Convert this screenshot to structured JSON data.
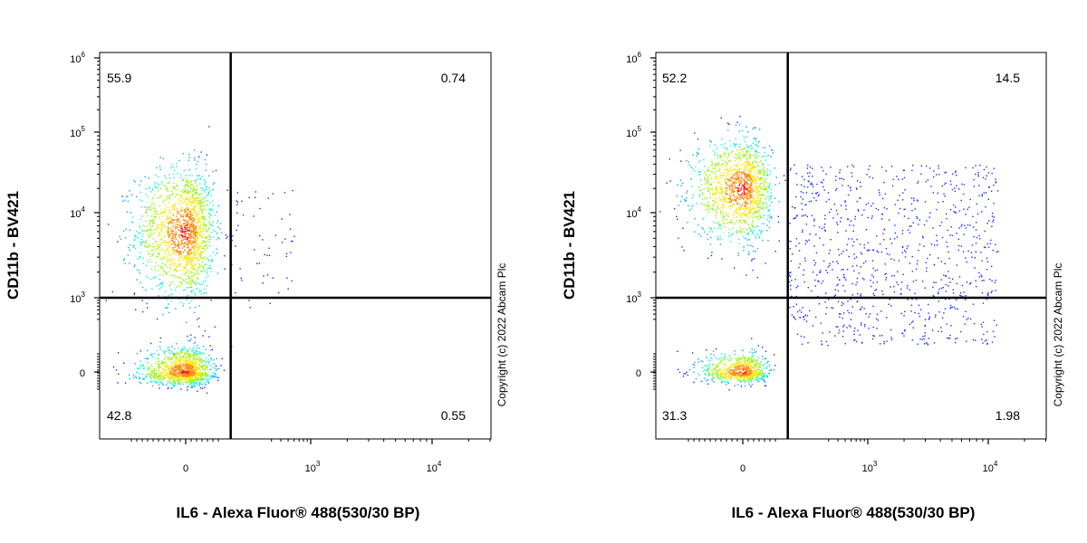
{
  "copyright": "Copyright (c) 2022 Abcam Plc",
  "colors": {
    "density": [
      "#1a2bff",
      "#15a4ff",
      "#18f0d8",
      "#9cf51a",
      "#f7e816",
      "#ff8a10",
      "#ff1a10"
    ],
    "gate_line": "#000000"
  },
  "chart_data": [
    {
      "type": "scatter",
      "subtype": "flow-cytometry-density-dot-plot",
      "xlabel": "IL6 - Alexa Fluor® 488(530/30 BP)",
      "ylabel": "CD11b - BV421",
      "x_scale": "biexponential",
      "y_scale": "biexponential",
      "x_ticks": [
        {
          "base": "0",
          "exp": ""
        },
        {
          "base": "10",
          "exp": "3"
        },
        {
          "base": "10",
          "exp": "4"
        }
      ],
      "y_ticks": [
        {
          "base": "0",
          "exp": ""
        },
        {
          "base": "10",
          "exp": "3"
        },
        {
          "base": "10",
          "exp": "4"
        },
        {
          "base": "10",
          "exp": "5"
        },
        {
          "base": "10",
          "exp": "6"
        }
      ],
      "quadrant_gate": {
        "x": 180,
        "y": 1000
      },
      "quadrants": {
        "upper_left": "55.9",
        "upper_right": "0.74",
        "lower_left": "42.8",
        "lower_right": "0.55"
      },
      "populations": [
        {
          "x_center": 0,
          "y_center": 6000,
          "n": 1700,
          "x_spread": 55,
          "y_spread": 0.38
        },
        {
          "x_center": 0,
          "y_center": 0,
          "n": 1300,
          "x_spread": 50,
          "y_spread": 0.55
        }
      ],
      "scatter_tail": {
        "n": 60,
        "x_range": [
          180,
          700
        ],
        "y_range": [
          700,
          20000
        ]
      }
    },
    {
      "type": "scatter",
      "subtype": "flow-cytometry-density-dot-plot",
      "xlabel": "IL6 - Alexa Fluor® 488(530/30 BP)",
      "ylabel": "CD11b - BV421",
      "x_scale": "biexponential",
      "y_scale": "biexponential",
      "x_ticks": [
        {
          "base": "0",
          "exp": ""
        },
        {
          "base": "10",
          "exp": "3"
        },
        {
          "base": "10",
          "exp": "4"
        }
      ],
      "y_ticks": [
        {
          "base": "0",
          "exp": ""
        },
        {
          "base": "10",
          "exp": "3"
        },
        {
          "base": "10",
          "exp": "4"
        },
        {
          "base": "10",
          "exp": "5"
        },
        {
          "base": "10",
          "exp": "6"
        }
      ],
      "quadrant_gate": {
        "x": 180,
        "y": 1000
      },
      "quadrants": {
        "upper_left": "52.2",
        "upper_right": "14.5",
        "lower_left": "31.3",
        "lower_right": "1.98"
      },
      "populations": [
        {
          "x_center": 0,
          "y_center": 20000,
          "n": 1400,
          "x_spread": 55,
          "y_spread": 0.3
        },
        {
          "x_center": 0,
          "y_center": 0,
          "n": 800,
          "x_spread": 45,
          "y_spread": 0.45
        }
      ],
      "scatter_tail": {
        "n": 900,
        "x_range": [
          180,
          12000
        ],
        "y_range": [
          300,
          40000
        ]
      }
    }
  ]
}
